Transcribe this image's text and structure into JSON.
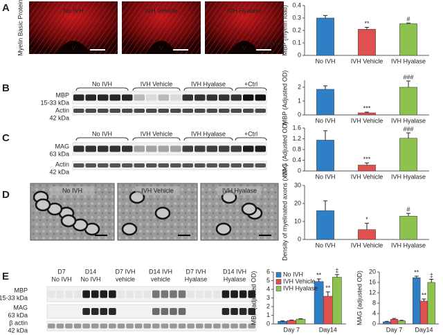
{
  "panel_labels": [
    "A",
    "B",
    "C",
    "D",
    "E"
  ],
  "panel_a": {
    "side_label": "Myelin Basic Protein",
    "images": [
      {
        "title": "No IVH",
        "marker": "V"
      },
      {
        "title": "IVH Vehicle",
        "marker": "V"
      },
      {
        "title": "IVH Hyalase",
        "marker": "V",
        "scale": "200um"
      }
    ]
  },
  "panel_b": {
    "groups": [
      "No IVH",
      "IVH Vehicle",
      "IVH Hyalase",
      "+Ctrl"
    ],
    "rows": [
      {
        "name": "MBP",
        "kda": "15-33 kDa"
      },
      {
        "name": "Actin",
        "kda": "42 kDa"
      }
    ]
  },
  "panel_c": {
    "groups": [
      "No IVH",
      "IVH Vehicle",
      "IVH Hyalase",
      "+Ctrl"
    ],
    "rows": [
      {
        "name": "MAG",
        "kda": "63 kDa"
      },
      {
        "name": "Actin",
        "kda": "42 kDa"
      }
    ]
  },
  "panel_d": {
    "images": [
      "No IVH",
      "IVH Vehicle",
      "IVH Hyalase"
    ]
  },
  "panel_e": {
    "groups": [
      {
        "day": "D7",
        "label": "No IVH"
      },
      {
        "day": "D14",
        "label": "No IVH"
      },
      {
        "day": "D7 IVH",
        "label": "vehicle"
      },
      {
        "day": "D14 IVH",
        "label": "vehicle"
      },
      {
        "day": "D7 IVH",
        "label": "Hyalase"
      },
      {
        "day": "D14 IVH",
        "label": "Hyalase"
      }
    ],
    "rows": [
      {
        "name": "MBP",
        "kda": "15-33 kDa"
      },
      {
        "name": "MAG",
        "kda": "63 kDa"
      },
      {
        "name": "β actin",
        "kda": "42 kDa"
      }
    ]
  },
  "chart_data": [
    {
      "type": "bar",
      "ylabel": "MBP (myelin load)",
      "categories": [
        "No IVH",
        "IVH Vehicle",
        "IVH Hyalase"
      ],
      "values": [
        0.3,
        0.21,
        0.255
      ],
      "errors": [
        0.02,
        0.015,
        0.005
      ],
      "annotations": [
        null,
        "**",
        "#"
      ],
      "colors": [
        "#2e7fc6",
        "#e0504f",
        "#8dc24f"
      ],
      "ylim": [
        0,
        0.4
      ],
      "yticks": [
        0,
        0.1,
        0.2,
        0.3,
        0.4
      ]
    },
    {
      "type": "bar",
      "ylabel": "MBP (Adjusted OD)",
      "categories": [
        "No IVH",
        "IVH Vehicle",
        "IVH Hyalase"
      ],
      "values": [
        1.85,
        0.15,
        2.0
      ],
      "errors": [
        0.25,
        0.05,
        0.45
      ],
      "annotations": [
        null,
        "***",
        "###"
      ],
      "colors": [
        "#2e7fc6",
        "#e0504f",
        "#8dc24f"
      ],
      "ylim": [
        0,
        2.5
      ],
      "yticks": [
        0,
        1,
        2
      ]
    },
    {
      "type": "bar",
      "ylabel": "MAG (Adjusted OD)",
      "categories": [
        "No IVH",
        "IVH Vehicle",
        "IVH Hyalase"
      ],
      "values": [
        1.15,
        0.22,
        1.22
      ],
      "errors": [
        0.35,
        0.08,
        0.2
      ],
      "annotations": [
        null,
        "***",
        "###"
      ],
      "colors": [
        "#2e7fc6",
        "#e0504f",
        "#8dc24f"
      ],
      "ylim": [
        0,
        1.6
      ],
      "yticks": [
        0,
        0.4,
        0.8,
        1.2,
        1.6
      ]
    },
    {
      "type": "bar",
      "ylabel": "Density of myelinated axons (x10⁴)",
      "categories": [
        "No IVH",
        "IVH Vehicle",
        "IVH Hyalase"
      ],
      "values": [
        16,
        5.5,
        13
      ],
      "errors": [
        5.5,
        3.5,
        1.5
      ],
      "annotations": [
        null,
        "*",
        "#"
      ],
      "colors": [
        "#2e7fc6",
        "#e0504f",
        "#8dc24f"
      ],
      "ylim": [
        0,
        30
      ],
      "yticks": [
        0,
        10,
        20,
        30
      ]
    },
    {
      "type": "grouped-bar",
      "ylabel": "MBP (adjusted OD)",
      "categories": [
        "Day 7",
        "Day14"
      ],
      "legend": "top-left",
      "series": [
        {
          "name": "No IVH",
          "color": "#2e7fc6",
          "values": [
            0.3,
            4.9
          ],
          "errors": [
            0.05,
            0.3
          ],
          "annotations": [
            null,
            "**"
          ]
        },
        {
          "name": "IVH Vehicle",
          "color": "#e0504f",
          "values": [
            0.4,
            3.2
          ],
          "errors": [
            0.05,
            0.5
          ],
          "annotations": [
            null,
            "**"
          ]
        },
        {
          "name": "IVH Hyalase",
          "color": "#8dc24f",
          "values": [
            0.55,
            5.4
          ],
          "errors": [
            0.05,
            0.3
          ],
          "annotations": [
            null,
            "‡"
          ]
        }
      ],
      "ylim": [
        0,
        6
      ],
      "yticks": [
        0,
        1,
        2,
        3,
        4,
        5,
        6
      ]
    },
    {
      "type": "grouped-bar",
      "ylabel": "MAG (adjusted OD)",
      "categories": [
        "Day 7",
        "Day14"
      ],
      "series": [
        {
          "name": "No IVH",
          "color": "#2e7fc6",
          "values": [
            0.8,
            17.8
          ],
          "errors": [
            0.2,
            0.6
          ],
          "annotations": [
            null,
            "**"
          ]
        },
        {
          "name": "IVH Vehicle",
          "color": "#e0504f",
          "values": [
            1.8,
            8.8
          ],
          "errors": [
            0.3,
            0.8
          ],
          "annotations": [
            null,
            "**"
          ]
        },
        {
          "name": "IVH Hyalase",
          "color": "#8dc24f",
          "values": [
            1.2,
            16
          ],
          "errors": [
            0.2,
            1.2
          ],
          "annotations": [
            null,
            "‡"
          ]
        }
      ],
      "ylim": [
        0,
        20
      ],
      "yticks": [
        0,
        4,
        8,
        12,
        16,
        20
      ]
    }
  ]
}
